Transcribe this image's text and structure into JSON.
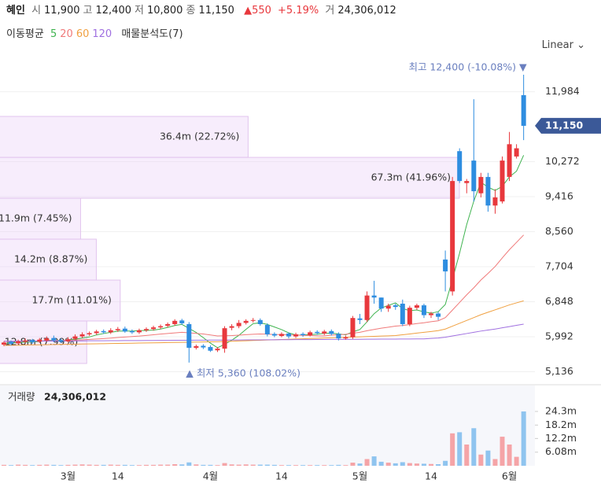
{
  "header": {
    "name": "혜인",
    "items": [
      {
        "label": "시",
        "value": "11,900"
      },
      {
        "label": "고",
        "value": "12,400"
      },
      {
        "label": "저",
        "value": "10,800"
      },
      {
        "label": "종",
        "value": "11,150"
      }
    ],
    "change": "▲550",
    "change_pct": "+5.19%",
    "volume_label": "거",
    "volume": "24,306,012"
  },
  "legend": {
    "title": "이동평균",
    "profile": "매물분석도(7)"
  },
  "scale_button": "Linear",
  "chart_data": {
    "type": "candlestick",
    "categories": [
      null,
      null,
      null,
      null,
      null,
      null,
      null,
      null,
      null,
      "3월",
      null,
      null,
      null,
      null,
      null,
      null,
      "14",
      null,
      null,
      null,
      null,
      null,
      null,
      null,
      null,
      null,
      null,
      null,
      null,
      "4월",
      null,
      null,
      null,
      null,
      null,
      null,
      null,
      null,
      null,
      "14",
      null,
      null,
      null,
      null,
      null,
      null,
      null,
      null,
      null,
      null,
      "5월",
      null,
      null,
      null,
      null,
      null,
      null,
      null,
      null,
      null,
      "14",
      null,
      null,
      null,
      null,
      null,
      null,
      null,
      null,
      null,
      null,
      "6월",
      null,
      null
    ],
    "ohlc": {
      "open": [
        5800,
        5870,
        5830,
        5870,
        5910,
        5870,
        5900,
        5960,
        5910,
        5880,
        5940,
        6000,
        6050,
        6080,
        6130,
        6100,
        6150,
        6190,
        6130,
        6100,
        6150,
        6180,
        6220,
        6260,
        6300,
        6390,
        6300,
        5720,
        5770,
        5740,
        5660,
        5700,
        6210,
        6250,
        6330,
        6380,
        6400,
        6280,
        6060,
        6010,
        6070,
        6000,
        6060,
        6030,
        6110,
        6070,
        6130,
        6060,
        5950,
        5980,
        6440,
        6400,
        7000,
        6950,
        6680,
        6760,
        6800,
        6300,
        6700,
        6760,
        6520,
        6560,
        7880,
        7100,
        10530,
        9750,
        10300,
        9500,
        9900,
        9200,
        9300,
        9900,
        10400,
        11900
      ],
      "high": [
        5880,
        5900,
        5920,
        5950,
        5940,
        5960,
        6000,
        6020,
        5950,
        5980,
        6050,
        6100,
        6120,
        6160,
        6170,
        6200,
        6230,
        6240,
        6170,
        6190,
        6220,
        6260,
        6290,
        6340,
        6420,
        6430,
        6350,
        5800,
        5810,
        5780,
        5740,
        6250,
        6300,
        6400,
        6420,
        6450,
        6440,
        6320,
        6100,
        6100,
        6100,
        6090,
        6100,
        6140,
        6150,
        6160,
        6170,
        6100,
        6020,
        6500,
        6550,
        7100,
        7360,
        6950,
        6800,
        6800,
        6900,
        6750,
        6800,
        6800,
        6600,
        6600,
        8100,
        9900,
        10600,
        9850,
        11800,
        10000,
        10000,
        9600,
        10400,
        11000,
        10700,
        12400
      ],
      "low": [
        5760,
        5780,
        5800,
        5830,
        5820,
        5840,
        5870,
        5860,
        5840,
        5850,
        5900,
        5960,
        6010,
        6040,
        6060,
        6060,
        6110,
        6090,
        6060,
        6060,
        6110,
        6140,
        6180,
        6220,
        6260,
        6280,
        5360,
        5680,
        5690,
        5620,
        5620,
        5600,
        6150,
        6200,
        6290,
        6340,
        6260,
        6000,
        5980,
        5980,
        5950,
        5960,
        5990,
        6000,
        6040,
        6030,
        6020,
        5900,
        5920,
        5940,
        6300,
        6350,
        6800,
        6600,
        6600,
        6650,
        6250,
        6250,
        6650,
        6450,
        6450,
        6400,
        7100,
        7000,
        9750,
        9500,
        9300,
        9400,
        9050,
        9000,
        9250,
        9800,
        10350,
        10800
      ],
      "close": [
        5850,
        5820,
        5880,
        5900,
        5860,
        5920,
        5950,
        5900,
        5870,
        5930,
        6000,
        6050,
        6080,
        6120,
        6100,
        6150,
        6180,
        6120,
        6100,
        6150,
        6180,
        6220,
        6250,
        6300,
        6380,
        6320,
        5720,
        5760,
        5730,
        5650,
        5700,
        6200,
        6250,
        6330,
        6380,
        6400,
        6300,
        6050,
        6020,
        6060,
        6000,
        6050,
        6030,
        6100,
        6080,
        6120,
        6060,
        5950,
        5980,
        6450,
        6400,
        7000,
        6950,
        6680,
        6750,
        6720,
        6300,
        6700,
        6760,
        6520,
        6560,
        6480,
        7590,
        9800,
        9800,
        9800,
        9550,
        9900,
        9200,
        9400,
        10300,
        10700,
        10600,
        11150
      ]
    },
    "up_color": "#e8383d",
    "down_color": "#2e8de0",
    "volume_up_color": "#f5a4a7",
    "volume_down_color": "#8fc4ef",
    "series": [
      {
        "name": "5",
        "color": "#3fb34f",
        "values": [
          5830,
          5840,
          5850,
          5860,
          5862,
          5876,
          5902,
          5906,
          5900,
          5914,
          5930,
          5960,
          5986,
          6036,
          6070,
          6100,
          6126,
          6134,
          6130,
          6140,
          6146,
          6154,
          6180,
          6220,
          6266,
          6294,
          6194,
          6096,
          5970,
          5836,
          5722,
          5808,
          5906,
          6026,
          6172,
          6312,
          6332,
          6292,
          6230,
          6166,
          6086,
          6036,
          6032,
          6048,
          6052,
          6076,
          6078,
          6062,
          6038,
          6112,
          6168,
          6356,
          6556,
          6696,
          6756,
          6820,
          6680,
          6630,
          6646,
          6600,
          6568,
          6604,
          6782,
          7392,
          8034,
          8734,
          9308,
          9770,
          9650,
          9570,
          9670,
          9900,
          10040,
          10430
        ]
      },
      {
        "name": "20",
        "color": "#f07a7a",
        "values": [
          5880,
          5880,
          5882,
          5884,
          5886,
          5888,
          5892,
          5896,
          5900,
          5904,
          5910,
          5918,
          5926,
          5936,
          5946,
          5958,
          5972,
          5984,
          5996,
          6008,
          6024,
          6040,
          6056,
          6070,
          6086,
          6100,
          6088,
          6074,
          6058,
          6036,
          6012,
          6016,
          6020,
          6030,
          6042,
          6052,
          6058,
          6054,
          6048,
          6044,
          6036,
          6030,
          6026,
          6020,
          6014,
          6010,
          6030,
          6040,
          6052,
          6078,
          6100,
          6138,
          6170,
          6200,
          6226,
          6252,
          6266,
          6290,
          6314,
          6334,
          6360,
          6382,
          6458,
          6644,
          6830,
          7016,
          7190,
          7380,
          7540,
          7710,
          7920,
          8120,
          8300,
          8480
        ]
      },
      {
        "name": "60",
        "color": "#f0a040",
        "values": [
          5780,
          5783,
          5786,
          5789,
          5792,
          5795,
          5798,
          5801,
          5804,
          5807,
          5810,
          5813,
          5816,
          5819,
          5822,
          5825,
          5828,
          5831,
          5834,
          5837,
          5840,
          5843,
          5846,
          5849,
          5852,
          5855,
          5858,
          5861,
          5864,
          5867,
          5870,
          5876,
          5882,
          5888,
          5894,
          5900,
          5906,
          5912,
          5918,
          5924,
          5930,
          5936,
          5942,
          5948,
          5954,
          5960,
          5966,
          5972,
          5978,
          5984,
          5990,
          5996,
          6002,
          6008,
          6014,
          6020,
          6040,
          6060,
          6080,
          6100,
          6120,
          6140,
          6180,
          6250,
          6320,
          6390,
          6460,
          6530,
          6590,
          6650,
          6710,
          6770,
          6820,
          6870
        ]
      },
      {
        "name": "120",
        "color": "#a070e0",
        "values": [
          5880,
          5881,
          5882,
          5883,
          5884,
          5885,
          5886,
          5887,
          5888,
          5889,
          5890,
          5891,
          5892,
          5893,
          5894,
          5895,
          5896,
          5897,
          5898,
          5899,
          5900,
          5901,
          5902,
          5903,
          5904,
          5905,
          5906,
          5907,
          5908,
          5909,
          5910,
          5911,
          5912,
          5913,
          5914,
          5915,
          5916,
          5917,
          5918,
          5919,
          5920,
          5921,
          5922,
          5923,
          5924,
          5925,
          5926,
          5927,
          5928,
          5929,
          5930,
          5931,
          5932,
          5933,
          5934,
          5935,
          5936,
          5937,
          5938,
          5939,
          5950,
          5960,
          5980,
          6010,
          6040,
          6070,
          6100,
          6130,
          6155,
          6180,
          6210,
          6240,
          6270,
          6300
        ]
      }
    ],
    "ylim": [
      4895,
      12784
    ],
    "yticks": [
      {
        "value": 5136,
        "label": "5,136"
      },
      {
        "value": 5992,
        "label": "5,992"
      },
      {
        "value": 6848,
        "label": "6,848"
      },
      {
        "value": 7704,
        "label": "7,704"
      },
      {
        "value": 8560,
        "label": "8,560"
      },
      {
        "value": 9416,
        "label": "9,416"
      },
      {
        "value": 10272,
        "label": "10,272"
      },
      {
        "value": 11984,
        "label": "11,984"
      }
    ],
    "grid": true,
    "last_price": {
      "value": 11150,
      "label": "11,150"
    },
    "annotations": {
      "max": "최고 12,400 (-10.08%) ▼",
      "min": "▲ 최저 5,360 (108.02%)"
    },
    "volume_profile": {
      "price_bins": [
        5338,
        6377,
        7377,
        8378,
        9378,
        10378,
        11380
      ],
      "volumes": [
        12.8,
        17.7,
        14.2,
        11.9,
        67.3,
        36.4
      ],
      "percents": [
        7.99,
        11.01,
        8.87,
        7.45,
        41.96,
        22.72
      ],
      "value_labels": [
        "12.8m (7.99%)",
        "17.7m (11.01%)",
        "14.2m (8.87%)",
        "11.9m (7.45%)",
        "67.3m (41.96%)",
        "36.4m (22.72%)"
      ]
    },
    "volume": {
      "title": "거래량",
      "total": "24,306,012",
      "values": [
        0.4,
        0.3,
        0.5,
        0.4,
        0.3,
        0.4,
        0.5,
        0.4,
        0.3,
        0.4,
        0.5,
        0.6,
        0.5,
        0.4,
        0.4,
        0.5,
        0.4,
        0.4,
        0.3,
        0.3,
        0.4,
        0.4,
        0.5,
        0.5,
        0.7,
        0.6,
        1.5,
        0.6,
        0.4,
        0.4,
        0.3,
        1.2,
        0.6,
        0.5,
        0.6,
        0.5,
        0.5,
        0.5,
        0.4,
        0.3,
        0.3,
        0.3,
        0.3,
        0.3,
        0.3,
        0.3,
        0.3,
        0.4,
        0.3,
        1.4,
        1.0,
        3.0,
        4.2,
        1.8,
        1.4,
        1.1,
        1.6,
        1.2,
        1.0,
        0.9,
        0.8,
        0.7,
        2.2,
        14.5,
        15.0,
        9.5,
        16.8,
        5.0,
        6.8,
        3.0,
        13.0,
        9.5,
        4.0,
        24.3
      ],
      "ylim": [
        0,
        35.9
      ],
      "yticks": [
        {
          "value": 6.08,
          "label": "6.08m"
        },
        {
          "value": 12.2,
          "label": "12.2m"
        },
        {
          "value": 18.2,
          "label": "18.2m"
        },
        {
          "value": 24.3,
          "label": "24.3m"
        }
      ]
    }
  }
}
